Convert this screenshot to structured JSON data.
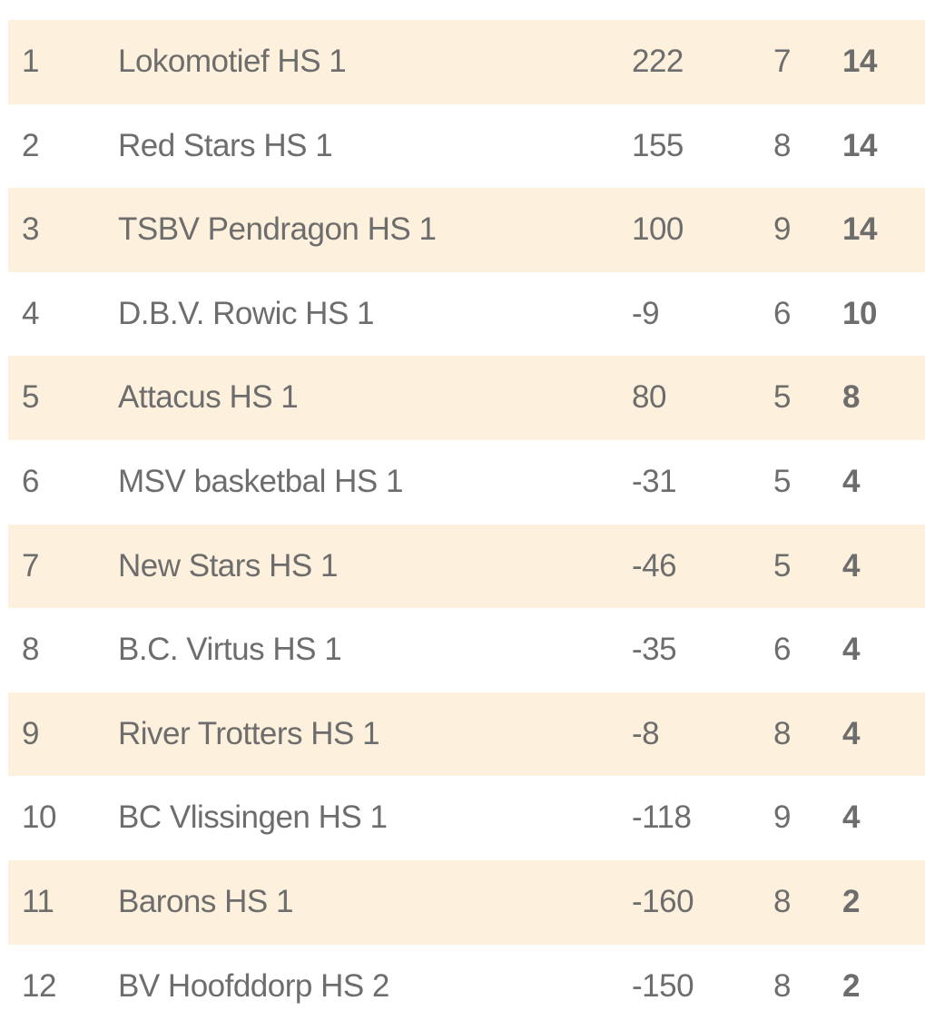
{
  "table": {
    "rows": [
      [
        1,
        "Lokomotief HS 1",
        222,
        7,
        14
      ],
      [
        2,
        "Red Stars HS 1",
        155,
        8,
        14
      ],
      [
        3,
        "TSBV Pendragon HS 1",
        100,
        9,
        14
      ],
      [
        4,
        "D.B.V. Rowic HS 1",
        -9,
        6,
        10
      ],
      [
        5,
        "Attacus HS 1",
        80,
        5,
        8
      ],
      [
        6,
        "MSV basketbal HS 1",
        -31,
        5,
        4
      ],
      [
        7,
        "New Stars HS 1",
        -46,
        5,
        4
      ],
      [
        8,
        "B.C. Virtus HS 1",
        -35,
        6,
        4
      ],
      [
        9,
        "River Trotters HS 1",
        -8,
        8,
        4
      ],
      [
        10,
        "BC Vlissingen HS 1",
        -118,
        9,
        4
      ],
      [
        11,
        "Barons HS 1",
        -160,
        8,
        2
      ],
      [
        12,
        "BV Hoofddorp HS 2",
        -150,
        8,
        2
      ]
    ]
  }
}
